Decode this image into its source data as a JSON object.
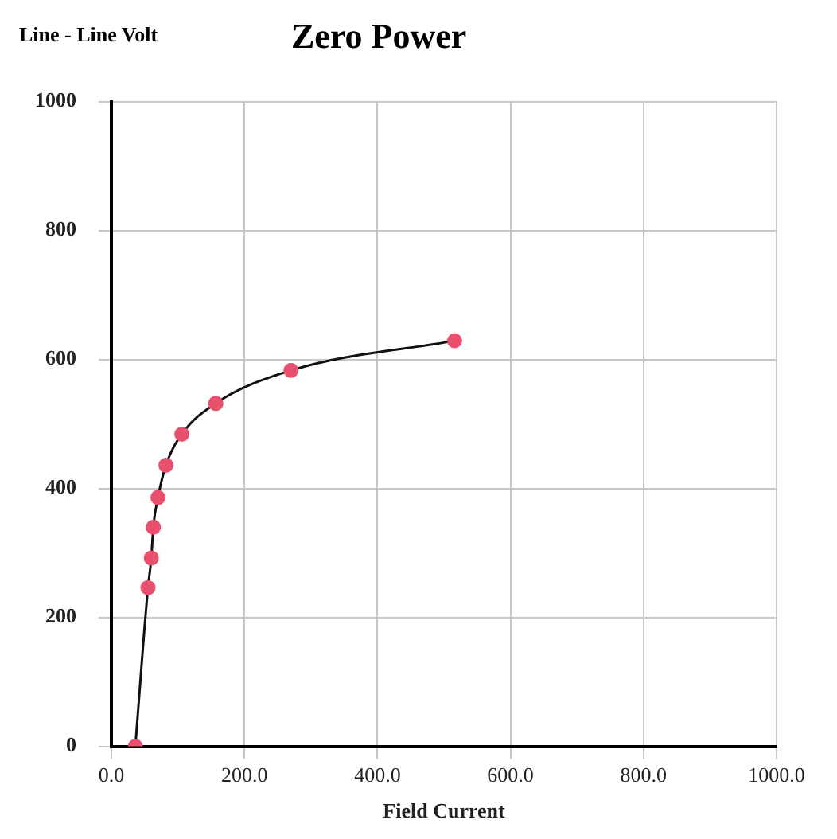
{
  "chart_data": {
    "type": "line",
    "title": "Zero Power",
    "xlabel": "Field Current",
    "ylabel": "Line - Line Volt",
    "x": [
      36,
      55,
      60,
      63,
      70,
      82,
      106,
      157,
      270,
      516
    ],
    "series": [
      {
        "color": "#e8506e",
        "values": [
          0,
          246,
          292,
          340,
          386,
          436,
          484,
          532,
          583,
          629
        ]
      }
    ],
    "xlim": [
      0,
      1000
    ],
    "xticks": [
      {
        "value": 0,
        "label": "0.0"
      },
      {
        "value": 200,
        "label": "200.0"
      },
      {
        "value": 400,
        "label": "400.0"
      },
      {
        "value": 600,
        "label": "600.0"
      },
      {
        "value": 800,
        "label": "800.0"
      },
      {
        "value": 1000,
        "label": "1000.0"
      }
    ],
    "ylim": [
      0,
      1000
    ],
    "yticks": [
      0,
      200,
      400,
      600,
      800,
      1000
    ],
    "grid": true,
    "marker": "circle",
    "line_style": "solid"
  }
}
